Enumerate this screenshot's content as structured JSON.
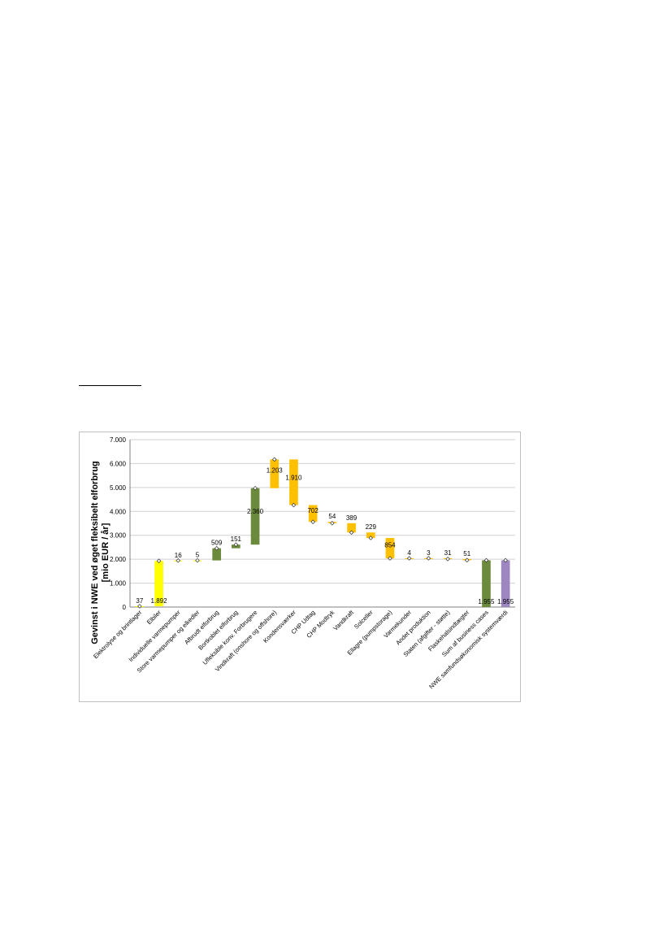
{
  "chart_data": {
    "type": "bar",
    "subtype": "waterfall",
    "ylabel": "Gevinst i NWE ved øget fleksibelt elforbrug\n[mio EUR / år]",
    "ylim": [
      0,
      7000
    ],
    "yticks": [
      "0",
      "1.000",
      "2.000",
      "3.000",
      "4.000",
      "5.000",
      "6.000",
      "7.000"
    ],
    "grid": true,
    "categories": [
      "Elektrolyse og brintlager",
      "Elbiler",
      "Individuelle varmepumper",
      "Store varmepumper og elkedler",
      "Afbrudt elforbrug",
      "Bortkoblet elforbrug",
      "Ufleksible konv. Forbrugere",
      "Vindkraft (onshore og offshore)",
      "Kondensværker",
      "CHP Udtag",
      "CHP Modtryk",
      "Vandkraft",
      "Solceller",
      "Ellagre (pumpstorage)",
      "Varmekunder",
      "Andet produktion",
      "Staten (afgifter - støtte)",
      "Flaskehalsindtægter",
      "Sum af business cases",
      "NWE samfundsøkonomisk systemværdi"
    ],
    "bars": [
      {
        "label": "37",
        "base": 0,
        "delta": 37,
        "color": "#ffff00"
      },
      {
        "label": "1.892",
        "base": 37,
        "delta": 1892,
        "color": "#ffff00"
      },
      {
        "label": "16",
        "base": 1929,
        "delta": 16,
        "color": "#ffff00"
      },
      {
        "label": "5",
        "base": 1945,
        "delta": 5,
        "color": "#ffff00"
      },
      {
        "label": "509",
        "base": 1950,
        "delta": 509,
        "color": "#6b8a3c"
      },
      {
        "label": "151",
        "base": 2459,
        "delta": 151,
        "color": "#6b8a3c"
      },
      {
        "label": "2.360",
        "base": 2610,
        "delta": 2360,
        "color": "#6b8a3c"
      },
      {
        "label": "1.203",
        "base": 4970,
        "delta": 1203,
        "color": "#ffc000"
      },
      {
        "label": "1.910",
        "base": 6173,
        "delta": -1910,
        "color": "#ffc000"
      },
      {
        "label": "702",
        "base": 4263,
        "delta": -702,
        "color": "#ffc000"
      },
      {
        "label": "54",
        "base": 3561,
        "delta": -54,
        "color": "#ffc000"
      },
      {
        "label": "389",
        "base": 3507,
        "delta": -389,
        "color": "#ffc000"
      },
      {
        "label": "229",
        "base": 3118,
        "delta": -229,
        "color": "#ffc000"
      },
      {
        "label": "854",
        "base": 2889,
        "delta": -854,
        "color": "#ffc000"
      },
      {
        "label": "4",
        "base": 2035,
        "delta": 4,
        "color": "#ffc000"
      },
      {
        "label": "3",
        "base": 2039,
        "delta": 3,
        "color": "#ffc000"
      },
      {
        "label": "31",
        "base": 2042,
        "delta": -31,
        "color": "#ffc000"
      },
      {
        "label": "51",
        "base": 2011,
        "delta": -51,
        "color": "#ffc000"
      },
      {
        "label": "1.955",
        "base": 0,
        "delta": 1955,
        "color": "#6b8a3c"
      },
      {
        "label": "1.955",
        "base": 0,
        "delta": 1955,
        "color": "#9e86c0"
      }
    ]
  }
}
